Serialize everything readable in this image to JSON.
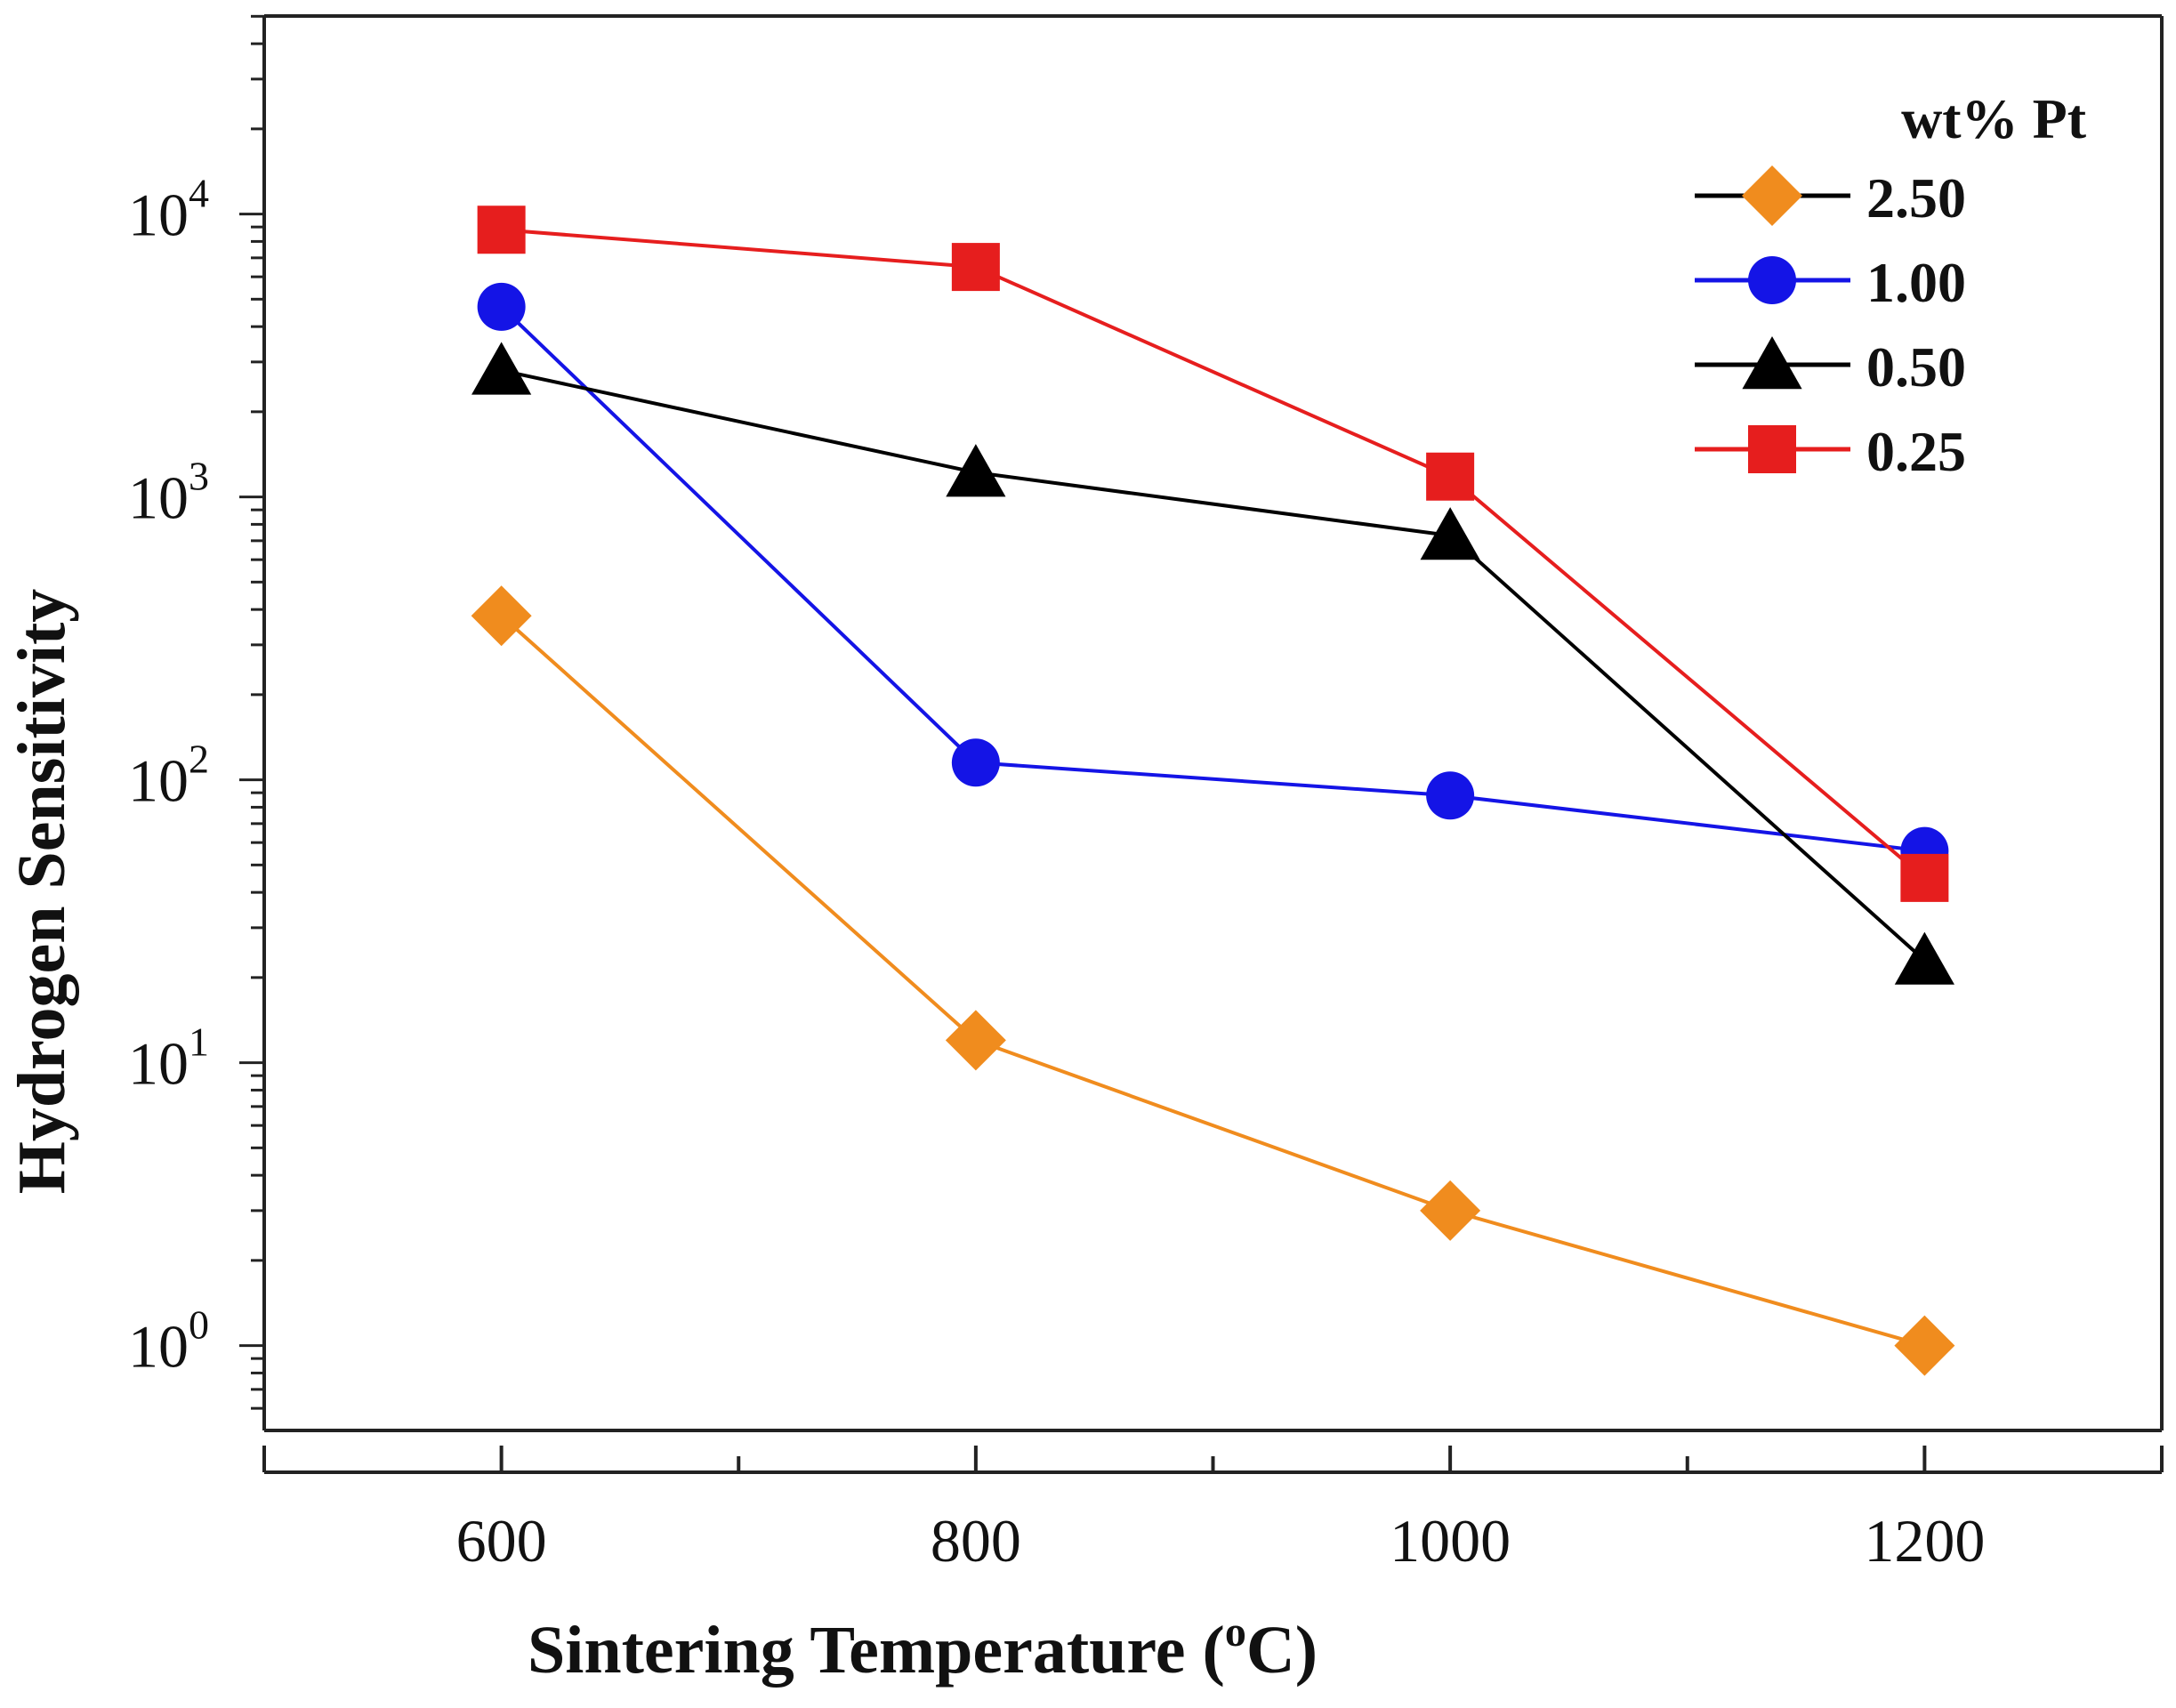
{
  "chart_data": {
    "type": "line",
    "xlabel": "Sintering Temperature (",
    "xlabel_sup": "o",
    "xlabel_unit": "C)",
    "ylabel": "Hydrogen Sensitivity",
    "yscale": "log",
    "xlim": [
      500,
      1300
    ],
    "ylim_exp": [
      -0.3,
      4.7
    ],
    "x_ticks": [
      600,
      800,
      1000,
      1200
    ],
    "x_tick_labels": [
      "600",
      "800",
      "1000",
      "1200"
    ],
    "y_ticks_exp": [
      0,
      1,
      2,
      3,
      4
    ],
    "y_tick_base": "10",
    "y_tick_exponents": [
      "0",
      "1",
      "2",
      "3",
      "4"
    ],
    "legend_title": "wt% Pt",
    "legend_position": "top-right",
    "x": [
      600,
      800,
      1000,
      1200
    ],
    "series": [
      {
        "name": "2.50",
        "marker": "diamond",
        "color": "#F08C1E",
        "line_color": "#F08C1E",
        "legend_line_color": "#000000",
        "values": [
          380,
          12,
          3,
          1
        ]
      },
      {
        "name": "1.00",
        "marker": "circle",
        "color": "#1414E6",
        "line_color": "#1414E6",
        "legend_line_color": "#1414E6",
        "values": [
          4700,
          115,
          88,
          56
        ]
      },
      {
        "name": "0.50",
        "marker": "triangle",
        "color": "#000000",
        "line_color": "#000000",
        "legend_line_color": "#000000",
        "values": [
          2800,
          1220,
          730,
          23
        ]
      },
      {
        "name": "0.25",
        "marker": "square",
        "color": "#E61E1E",
        "line_color": "#E61E1E",
        "legend_line_color": "#E61E1E",
        "values": [
          8800,
          6500,
          1180,
          45
        ]
      }
    ]
  }
}
